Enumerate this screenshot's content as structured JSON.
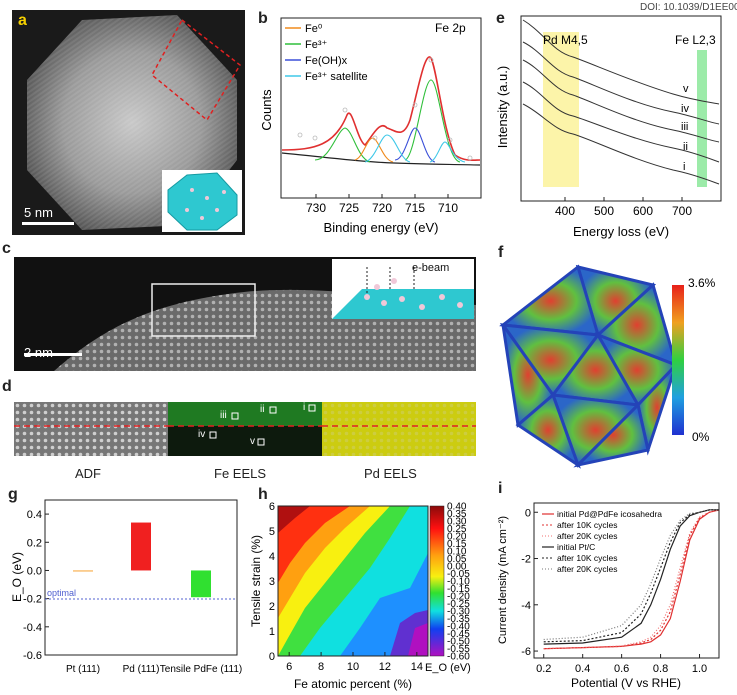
{
  "doi": "DOI: 10.1039/D1EE00",
  "panels": {
    "a": {
      "label": "a",
      "scale": "5 nm"
    },
    "b": {
      "label": "b",
      "title": "Fe 2p",
      "legend": [
        "Fe⁰",
        "Fe³⁺",
        "Fe(OH)x",
        "Fe³⁺ satellite"
      ],
      "legend_colors": [
        "#f08a1c",
        "#2fbf3a",
        "#3a4fd8",
        "#3fc8e8"
      ],
      "ylabel": "Counts",
      "xlabel": "Binding energy (eV)",
      "xticks": [
        "730",
        "725",
        "720",
        "715",
        "710"
      ]
    },
    "c": {
      "label": "c",
      "scale": "2 nm",
      "beam": "e-beam"
    },
    "d": {
      "label": "d",
      "boxes": [
        "i",
        "ii",
        "iii",
        "iv",
        "v"
      ],
      "captions": [
        "ADF",
        "Fe EELS",
        "Pd EELS"
      ]
    },
    "e": {
      "label": "e",
      "ylabel": "Intensity (a.u.)",
      "xlabel": "Energy loss (eV)",
      "xticks": [
        "400",
        "500",
        "600",
        "700"
      ],
      "pd_label": "Pd M4,5",
      "fe_label": "Fe L2,3",
      "traces": [
        "v",
        "iv",
        "iii",
        "ii",
        "i"
      ]
    },
    "f": {
      "label": "f",
      "cmax": "3.6%",
      "cmin": "0%"
    },
    "g": {
      "label": "g",
      "ylabel": "E_O (eV)",
      "yticks": [
        "0.4",
        "0.2",
        "0.0",
        "-0.2",
        "-0.4",
        "-0.6"
      ],
      "optimal": "optimal",
      "categories": [
        "Pt (111)",
        "Pd (111)",
        "Tensile PdFe (111)"
      ]
    },
    "h": {
      "label": "h",
      "ylabel": "Tensile strain (%)",
      "xlabel": "Fe atomic percent (%)",
      "xticks": [
        "6",
        "8",
        "10",
        "12",
        "14"
      ],
      "yticks": [
        "0",
        "1",
        "2",
        "3",
        "4",
        "5",
        "6"
      ],
      "cbar_ticks": [
        "0.40",
        "0.35",
        "0.30",
        "0.25",
        "0.20",
        "0.15",
        "0.10",
        "0.05",
        "0.00",
        "-0.05",
        "-0.10",
        "-0.15",
        "-0.20",
        "-0.25",
        "-0.30",
        "-0.35",
        "-0.40",
        "-0.45",
        "-0.50",
        "-0.55",
        "-0.60"
      ],
      "cbar_label": "E_O (eV)"
    },
    "i": {
      "label": "i",
      "ylabel": "Current density (mA cm⁻²)",
      "xlabel": "Potential (V vs RHE)",
      "xticks": [
        "0.2",
        "0.4",
        "0.6",
        "0.8",
        "1.0"
      ],
      "yticks": [
        "0",
        "-2",
        "-4",
        "-6"
      ],
      "legend": [
        "initial Pd@PdFe icosahedra",
        "after 10K cycles",
        "after 20K cycles",
        "initial Pt/C",
        "after 10K cycles",
        "after 20K cycles"
      ]
    }
  },
  "chart_data": [
    {
      "type": "bar",
      "title": "",
      "categories": [
        "Pt (111)",
        "Pd (111)",
        "Tensile PdFe (111)"
      ],
      "values": [
        0.0,
        0.34,
        -0.19
      ],
      "colors": [
        "#f7a030",
        "#f02020",
        "#30e030"
      ],
      "ylim": [
        -0.6,
        0.5
      ],
      "xlabel": "",
      "ylabel": "E_O (eV)",
      "reference_line": -0.2,
      "reference_label": "optimal"
    },
    {
      "type": "line",
      "title": "",
      "xlabel": "Potential (V vs RHE)",
      "ylabel": "Current density (mA cm⁻²)",
      "xlim": [
        0.15,
        1.1
      ],
      "ylim": [
        -6.3,
        0.4
      ],
      "x": [
        0.2,
        0.4,
        0.6,
        0.7,
        0.75,
        0.8,
        0.85,
        0.9,
        0.95,
        1.0,
        1.05,
        1.1
      ],
      "series": [
        {
          "name": "initial Pd@PdFe icosahedra",
          "values": [
            -5.9,
            -5.85,
            -5.8,
            -5.7,
            -5.6,
            -5.3,
            -4.6,
            -3.0,
            -1.2,
            -0.3,
            0.0,
            0.1
          ]
        },
        {
          "name": "after 10K cycles",
          "values": [
            -5.9,
            -5.85,
            -5.8,
            -5.65,
            -5.5,
            -5.1,
            -4.3,
            -2.7,
            -1.0,
            -0.25,
            0.0,
            0.1
          ]
        },
        {
          "name": "after 20K cycles",
          "values": [
            -5.9,
            -5.85,
            -5.78,
            -5.6,
            -5.4,
            -4.9,
            -4.0,
            -2.4,
            -0.9,
            -0.2,
            0.0,
            0.1
          ]
        },
        {
          "name": "initial Pt/C",
          "values": [
            -5.7,
            -5.65,
            -5.4,
            -4.8,
            -4.0,
            -2.9,
            -1.6,
            -0.6,
            -0.15,
            0.0,
            0.1,
            0.1
          ]
        },
        {
          "name": "after 10K cycles",
          "values": [
            -5.6,
            -5.55,
            -5.2,
            -4.4,
            -3.5,
            -2.4,
            -1.3,
            -0.45,
            -0.1,
            0.0,
            0.1,
            0.1
          ]
        },
        {
          "name": "after 20K cycles",
          "values": [
            -5.5,
            -5.4,
            -4.9,
            -4.0,
            -3.1,
            -2.0,
            -1.0,
            -0.35,
            -0.05,
            0.0,
            0.1,
            0.1
          ]
        }
      ]
    }
  ]
}
